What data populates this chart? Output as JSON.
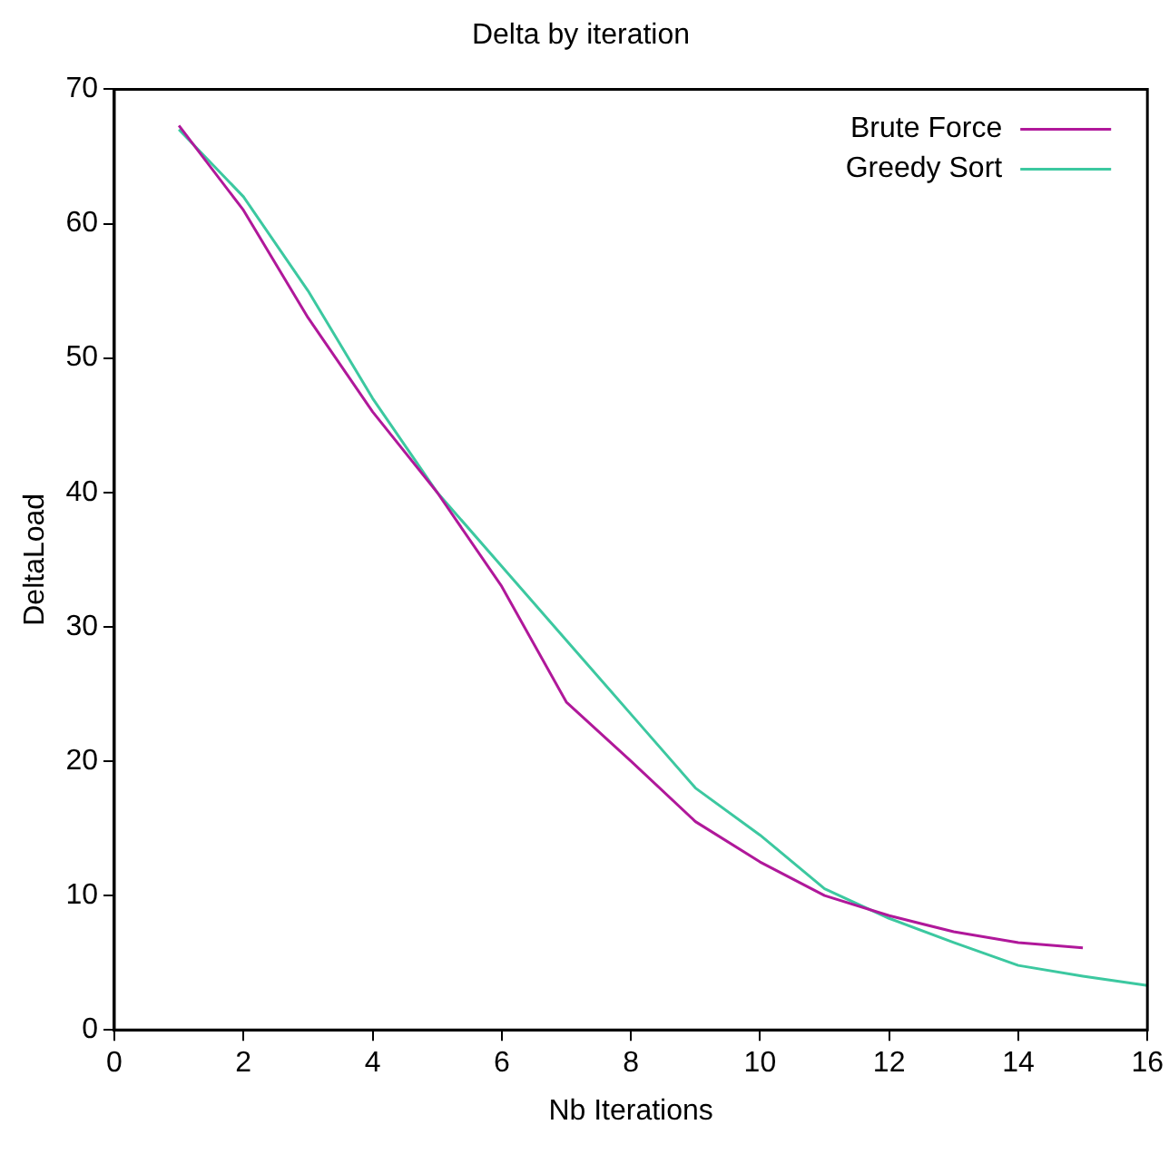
{
  "chart_data": {
    "type": "line",
    "title": "Delta by iteration",
    "xlabel": "Nb Iterations",
    "ylabel": "DeltaLoad",
    "xlim": [
      0,
      16
    ],
    "xticks": [
      0,
      2,
      4,
      6,
      8,
      10,
      12,
      14,
      16
    ],
    "ylim": [
      0,
      70
    ],
    "yticks": [
      0,
      10,
      20,
      30,
      40,
      50,
      60,
      70
    ],
    "grid": false,
    "legend": "top right",
    "marker": "none",
    "line_style": "solid",
    "series": [
      {
        "name": "Brute Force",
        "color": "#b0189a",
        "x": [
          1,
          2,
          3,
          4,
          5,
          6,
          7,
          8,
          9,
          10,
          11,
          12,
          13,
          14,
          15
        ],
        "values": [
          67.3,
          61,
          53,
          46,
          40,
          33,
          24.4,
          20,
          15.5,
          12.5,
          10,
          8.5,
          7.3,
          6.5,
          6.1
        ]
      },
      {
        "name": "Greedy Sort",
        "color": "#3cc8a0",
        "x": [
          1,
          2,
          3,
          4,
          5,
          6,
          7,
          8,
          9,
          10,
          11,
          12,
          13,
          14,
          15,
          16
        ],
        "values": [
          67,
          62,
          55,
          47,
          40,
          34.5,
          29,
          23.5,
          18,
          14.5,
          10.5,
          8.3,
          6.5,
          4.8,
          4,
          3.3
        ]
      }
    ]
  }
}
